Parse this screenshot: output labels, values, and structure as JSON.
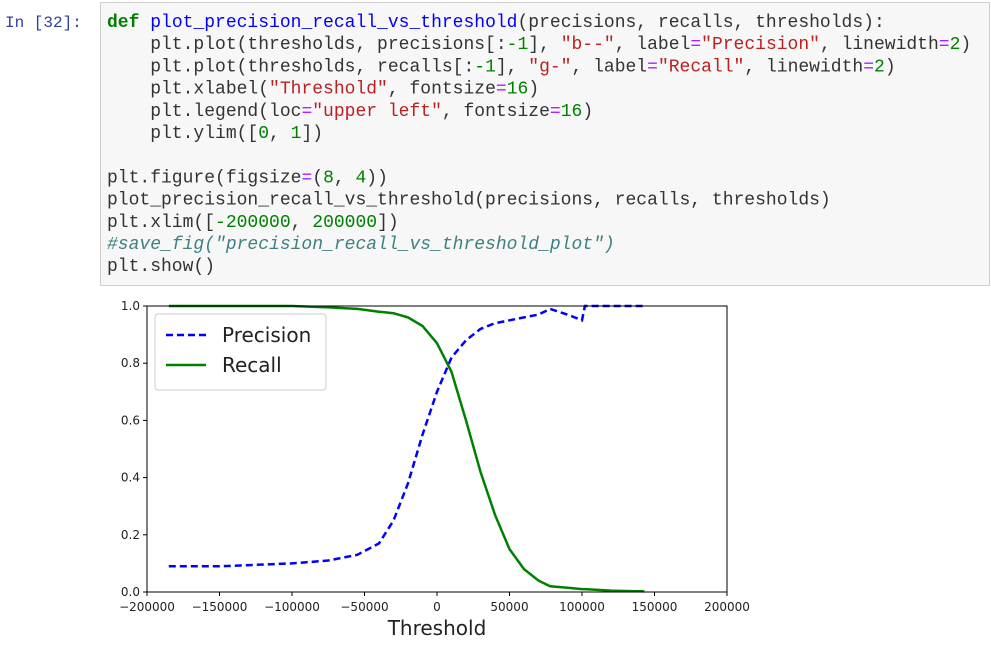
{
  "cell": {
    "prompt": "In [32]:",
    "blocks": [
      [
        [
          {
            "t": "def",
            "c": "#008000",
            "w": "bold"
          },
          " ",
          {
            "t": "plot_precision_recall_vs_threshold",
            "c": "#0000ff"
          },
          "(precisions, recalls, thresholds):"
        ],
        [
          "    plt.plot(thresholds, precisions[:",
          {
            "t": "-1",
            "c": "#008000"
          },
          "], ",
          {
            "t": "\"b--\"",
            "c": "#ba2121"
          },
          ", label",
          {
            "t": "=",
            "c": "#aa22ff"
          },
          {
            "t": "\"Precision\"",
            "c": "#ba2121"
          },
          ", linewidth",
          {
            "t": "=",
            "c": "#aa22ff"
          },
          {
            "t": "2",
            "c": "#008000"
          },
          ")"
        ],
        [
          "    plt.plot(thresholds, recalls[:",
          {
            "t": "-1",
            "c": "#008000"
          },
          "], ",
          {
            "t": "\"g-\"",
            "c": "#ba2121"
          },
          ", label",
          {
            "t": "=",
            "c": "#aa22ff"
          },
          {
            "t": "\"Recall\"",
            "c": "#ba2121"
          },
          ", linewidth",
          {
            "t": "=",
            "c": "#aa22ff"
          },
          {
            "t": "2",
            "c": "#008000"
          },
          ")"
        ],
        [
          "    plt.xlabel(",
          {
            "t": "\"Threshold\"",
            "c": "#ba2121"
          },
          ", fontsize",
          {
            "t": "=",
            "c": "#aa22ff"
          },
          {
            "t": "16",
            "c": "#008000"
          },
          ")"
        ],
        [
          "    plt.legend(loc",
          {
            "t": "=",
            "c": "#aa22ff"
          },
          {
            "t": "\"upper left\"",
            "c": "#ba2121"
          },
          ", fontsize",
          {
            "t": "=",
            "c": "#aa22ff"
          },
          {
            "t": "16",
            "c": "#008000"
          },
          ")"
        ],
        [
          "    plt.ylim([",
          {
            "t": "0",
            "c": "#008000"
          },
          ", ",
          {
            "t": "1",
            "c": "#008000"
          },
          "])"
        ]
      ],
      [
        [
          "plt.figure(figsize",
          {
            "t": "=",
            "c": "#aa22ff"
          },
          "(",
          {
            "t": "8",
            "c": "#008000"
          },
          ", ",
          {
            "t": "4",
            "c": "#008000"
          },
          "))"
        ],
        [
          "plot_precision_recall_vs_threshold(precisions, recalls, thresholds)"
        ],
        [
          "plt.xlim([",
          {
            "t": "-200000",
            "c": "#008000"
          },
          ", ",
          {
            "t": "200000",
            "c": "#008000"
          },
          "])"
        ],
        [
          {
            "t": "#save_fig(\"precision_recall_vs_threshold_plot\")",
            "c": "#408080",
            "s": "italic"
          }
        ],
        [
          "plt.show()"
        ]
      ]
    ]
  },
  "chart_data": {
    "type": "line",
    "xlabel": "Threshold",
    "x": [
      -185000,
      -150000,
      -100000,
      -75000,
      -55000,
      -40000,
      -30000,
      -20000,
      -10000,
      0,
      10000,
      20000,
      30000,
      40000,
      50000,
      60000,
      70000,
      78000,
      90000,
      100000,
      102000,
      120000,
      143000
    ],
    "series": [
      {
        "name": "Precision",
        "color": "#0000ff",
        "linestyle": "dashed",
        "values": [
          0.09,
          0.09,
          0.1,
          0.11,
          0.13,
          0.17,
          0.25,
          0.38,
          0.55,
          0.7,
          0.82,
          0.88,
          0.92,
          0.94,
          0.95,
          0.96,
          0.97,
          0.99,
          0.97,
          0.95,
          1.0,
          1.0,
          1.0
        ]
      },
      {
        "name": "Recall",
        "color": "#008000",
        "linestyle": "solid",
        "values": [
          1.0,
          1.0,
          1.0,
          0.995,
          0.99,
          0.98,
          0.975,
          0.96,
          0.93,
          0.87,
          0.77,
          0.6,
          0.42,
          0.27,
          0.15,
          0.08,
          0.04,
          0.02,
          0.015,
          0.01,
          0.01,
          0.005,
          0.002
        ]
      }
    ],
    "xlim": [
      -200000,
      200000
    ],
    "xticks": [
      {
        "value": -200000,
        "label": "−200000"
      },
      {
        "value": -150000,
        "label": "−150000"
      },
      {
        "value": -100000,
        "label": "−100000"
      },
      {
        "value": -50000,
        "label": "−50000"
      },
      0,
      50000,
      100000,
      150000,
      200000
    ],
    "ylim": [
      0,
      1
    ],
    "yticks": [
      {
        "value": 0,
        "label": "0.0"
      },
      0.2,
      0.4,
      0.6,
      0.8,
      {
        "value": 1,
        "label": "1.0"
      }
    ],
    "grid": false,
    "legend": "upper left"
  }
}
